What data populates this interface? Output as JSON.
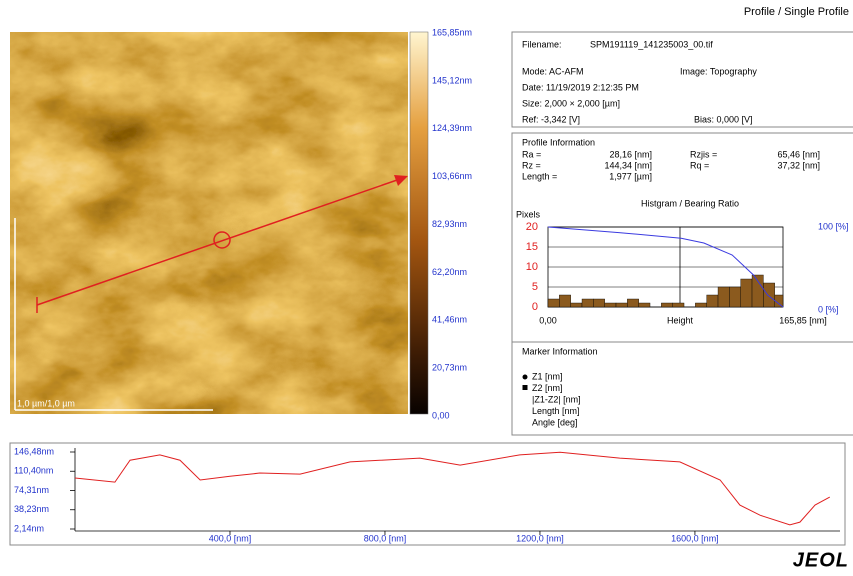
{
  "header": {
    "title": "Profile / Single Profile"
  },
  "image": {
    "scale_label": "1,0 µm/1,0 µm",
    "colorbar_labels": [
      "165,85nm",
      "145,12nm",
      "124,39nm",
      "103,66nm",
      "82,93nm",
      "62,20nm",
      "41,46nm",
      "20,73nm",
      "0,00"
    ]
  },
  "info": {
    "filename_label": "Filename:",
    "filename": "SPM191119_141235003_00.tif",
    "mode": "Mode: AC-AFM",
    "image": "Image: Topography",
    "date": "Date: 11/19/2019 2:12:35 PM",
    "size": "Size:  2,000 × 2,000 [µm]",
    "ref": "Ref:  -3,342 [V]",
    "bias": "Bias:  0,000 [V]"
  },
  "profile_info": {
    "title": "Profile Information",
    "rows": [
      [
        "Ra =",
        "28,16 [nm]",
        "Rzjis =",
        "65,46 [nm]"
      ],
      [
        "Rz =",
        "144,34 [nm]",
        "Rq =",
        "37,32 [nm]"
      ],
      [
        "Length =",
        "1,977 [µm]"
      ]
    ]
  },
  "histogram": {
    "type": "histogram",
    "title": "Histgram / Bearing Ratio",
    "y_label": "Pixels",
    "x_label": "Height",
    "color": "#8b5a1e",
    "bins": [
      0,
      8,
      16,
      24,
      32,
      40,
      48,
      56,
      64,
      72,
      80,
      88,
      96,
      104,
      112,
      120,
      128,
      136,
      144,
      152,
      160,
      165.85
    ],
    "counts": [
      2,
      3,
      1,
      2,
      2,
      1,
      1,
      2,
      1,
      0,
      1,
      1,
      0,
      1,
      3,
      5,
      5,
      7,
      8,
      6,
      3
    ],
    "xlim": [
      0,
      165.85
    ],
    "ylim": [
      0,
      20
    ],
    "yticks": [
      0,
      5,
      10,
      15,
      20
    ],
    "xticks": [
      {
        "value": 0,
        "label": "0,00"
      },
      {
        "value": 165.85,
        "label": "165,85 [nm]"
      }
    ],
    "y2lim": [
      0,
      100
    ],
    "y2ticks": [
      {
        "value": 100,
        "label": "100 [%]"
      },
      {
        "value": 0,
        "label": "0 [%]"
      }
    ],
    "bearing": {
      "axis": "y2",
      "color": "#3a3ae0",
      "x": [
        0,
        50,
        94,
        110,
        130,
        145,
        155,
        165.85
      ],
      "values": [
        100,
        93,
        86,
        80,
        65,
        40,
        15,
        0
      ]
    }
  },
  "marker_info": {
    "title": "Marker Information",
    "items": [
      "Z1 [nm]",
      "Z2 [nm]",
      "|Z1-Z2| [nm]",
      "Length [nm]",
      "Angle [deg]"
    ]
  },
  "profile": {
    "type": "line",
    "color": "#e02020",
    "x": [
      0,
      103,
      142,
      219,
      271,
      323,
      400,
      477,
      581,
      710,
      890,
      994,
      1148,
      1252,
      1406,
      1561,
      1665,
      1716,
      1768,
      1845,
      1871,
      1910,
      1948
    ],
    "values": [
      97.7,
      90,
      131,
      141,
      131,
      94,
      101,
      107,
      105,
      128,
      135,
      122,
      141,
      146,
      135,
      128,
      94,
      47,
      28,
      10,
      15,
      47,
      62
    ],
    "xlim": [
      0,
      1977
    ],
    "ylim": [
      2.14,
      146.48
    ],
    "yticks": [
      {
        "value": 146.48,
        "label": "146,48nm"
      },
      {
        "value": 110.4,
        "label": "110,40nm"
      },
      {
        "value": 74.31,
        "label": "74,31nm"
      },
      {
        "value": 38.23,
        "label": "38,23nm"
      },
      {
        "value": 2.14,
        "label": "2,14nm"
      }
    ],
    "xticks": [
      {
        "value": 400,
        "label": "400,0 [nm]"
      },
      {
        "value": 800,
        "label": "800,0 [nm]"
      },
      {
        "value": 1200,
        "label": "1200,0 [nm]"
      },
      {
        "value": 1600,
        "label": "1600,0 [nm]"
      }
    ]
  },
  "logo": "JEOL"
}
